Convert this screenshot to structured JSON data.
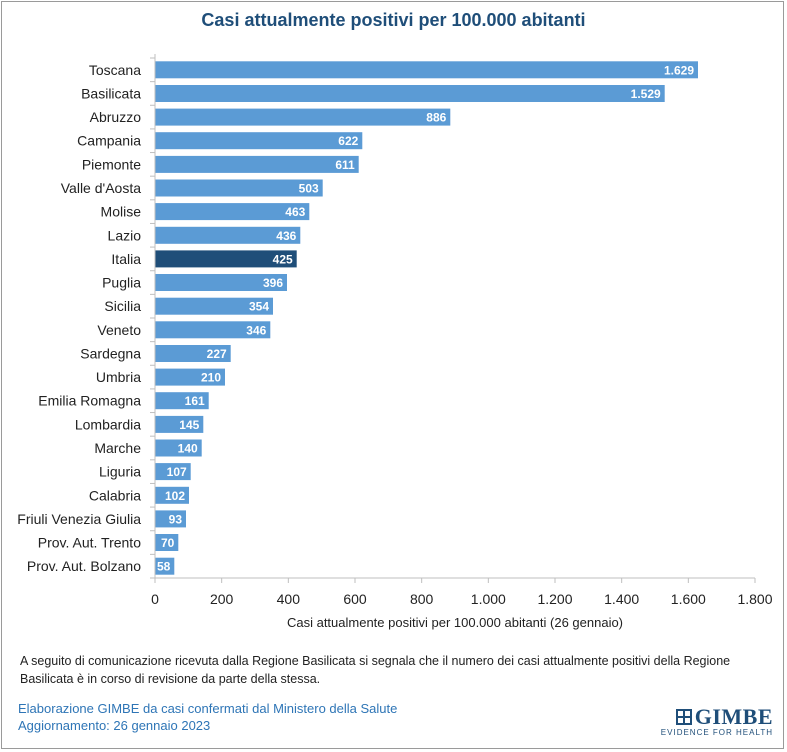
{
  "chart_data": {
    "type": "bar",
    "orientation": "horizontal",
    "title": "Casi attualmente positivi per 100.000 abitanti",
    "xlabel": "Casi attualmente positivi per 100.000 abitanti (26 gennaio)",
    "ylabel": "",
    "xlim": [
      0,
      1800
    ],
    "x_ticks": [
      "0",
      "200",
      "400",
      "600",
      "800",
      "1.000",
      "1.200",
      "1.400",
      "1.600",
      "1.800"
    ],
    "grid": false,
    "categories": [
      "Toscana",
      "Basilicata",
      "Abruzzo",
      "Campania",
      "Piemonte",
      "Valle d'Aosta",
      "Molise",
      "Lazio",
      "Italia",
      "Puglia",
      "Sicilia",
      "Veneto",
      "Sardegna",
      "Umbria",
      "Emilia Romagna",
      "Lombardia",
      "Marche",
      "Liguria",
      "Calabria",
      "Friuli Venezia Giulia",
      "Prov. Aut. Trento",
      "Prov. Aut. Bolzano"
    ],
    "values": [
      1629,
      1529,
      886,
      622,
      611,
      503,
      463,
      436,
      425,
      396,
      354,
      346,
      227,
      210,
      161,
      145,
      140,
      107,
      102,
      93,
      70,
      58
    ],
    "value_labels": [
      "1.629",
      "1.529",
      "886",
      "622",
      "611",
      "503",
      "463",
      "436",
      "425",
      "396",
      "354",
      "346",
      "227",
      "210",
      "161",
      "145",
      "140",
      "107",
      "102",
      "93",
      "70",
      "58"
    ],
    "colors": {
      "bar": "#5b9bd5",
      "highlight": "#1f4e79"
    },
    "highlight_category": "Italia"
  },
  "footnote": "A seguito di comunicazione ricevuta dalla Regione Basilicata si segnala che il numero dei casi attualmente positivi della Regione Basilicata è in corso di revisione da parte della stessa.",
  "source": {
    "line1": "Elaborazione GIMBE da casi confermati dal Ministero della Salute",
    "line2": "Aggiornamento: 26 gennaio 2023"
  },
  "logo": {
    "name": "GIMBE",
    "tagline": "EVIDENCE FOR HEALTH"
  }
}
